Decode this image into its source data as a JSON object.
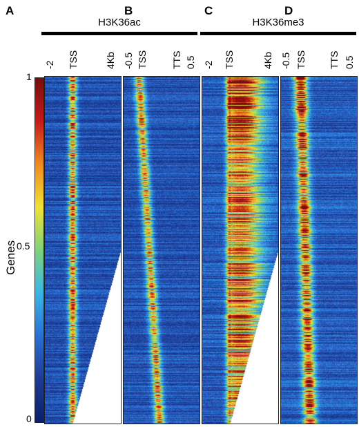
{
  "chart_data": {
    "type": "heatmap",
    "ylabel": "Genes",
    "colorbar_ticks": [
      "1",
      "0.5",
      "0"
    ],
    "ylim": [
      0,
      1
    ],
    "colormap": [
      "#0b1f6b",
      "#1e3a92",
      "#2a6fd6",
      "#38b6e8",
      "#7fd37a",
      "#f0e234",
      "#f08a1e",
      "#c51a1a",
      "#7a0d0d"
    ],
    "groups": [
      {
        "label": "H3K36ac",
        "panels": [
          "A",
          "B"
        ]
      },
      {
        "label": "H3K36me3",
        "panels": [
          "C",
          "D"
        ]
      }
    ],
    "panels": [
      {
        "letter": "A",
        "ticks": [
          "-2",
          "TSS",
          "4Kb"
        ],
        "mode": "tss",
        "signal": "peak"
      },
      {
        "letter": "B",
        "ticks": [
          "-0.5",
          "TSS",
          "TTS",
          "0.5"
        ],
        "mode": "tts",
        "signal": "peak"
      },
      {
        "letter": "C",
        "ticks": [
          "-2",
          "TSS",
          "4Kb"
        ],
        "mode": "tss",
        "signal": "body"
      },
      {
        "letter": "D",
        "ticks": [
          "-0.5",
          "TSS",
          "TTS",
          "0.5"
        ],
        "mode": "tts",
        "signal": "body"
      }
    ]
  }
}
